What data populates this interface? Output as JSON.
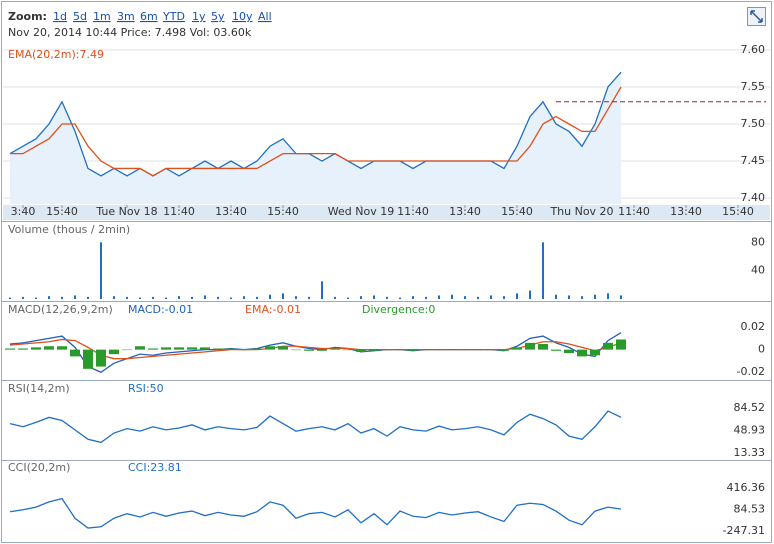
{
  "toolbar": {
    "label": "Zoom:",
    "ranges": [
      "1d",
      "5d",
      "1m",
      "3m",
      "6m",
      "YTD",
      "1y",
      "5y",
      "10y",
      "All"
    ]
  },
  "info": "Nov 20, 2014 10:44 Price: 7.498 Vol: 03.60k",
  "chart_data": [
    {
      "type": "area",
      "grid": true,
      "ylim": [
        7.392,
        7.608
      ],
      "yticks": [
        {
          "value": 7.6,
          "label": "7.60"
        },
        {
          "value": 7.55,
          "label": "7.55"
        },
        {
          "value": 7.5,
          "label": "7.50"
        },
        7.45,
        {
          "value": 7.4,
          "label": "7.40"
        }
      ],
      "categories": [
        null,
        "3:40",
        null,
        null,
        "15:40",
        null,
        null,
        null,
        null,
        "Tue Nov 18",
        null,
        null,
        null,
        "11:40",
        null,
        null,
        null,
        "13:40",
        null,
        null,
        null,
        "15:40",
        null,
        null,
        null,
        null,
        null,
        "Wed Nov 19",
        null,
        null,
        null,
        "11:40",
        null,
        null,
        null,
        "13:40",
        null,
        null,
        null,
        "15:40",
        null,
        null,
        null,
        null,
        "Thu Nov 20",
        null,
        null,
        null,
        "11:40",
        null,
        null,
        null,
        "13:40",
        null,
        null,
        null,
        "15:40",
        null,
        null
      ],
      "reference_line": 7.53,
      "series": [
        {
          "color": "#1f6fc5",
          "values": [
            7.46,
            7.47,
            7.48,
            7.5,
            7.53,
            7.49,
            7.44,
            7.43,
            7.44,
            7.43,
            7.44,
            7.43,
            7.44,
            7.43,
            7.44,
            7.45,
            7.44,
            7.45,
            7.44,
            7.45,
            7.47,
            7.48,
            7.46,
            7.46,
            7.45,
            7.46,
            7.45,
            7.44,
            7.45,
            7.45,
            7.45,
            7.44,
            7.45,
            7.45,
            7.45,
            7.45,
            7.45,
            7.45,
            7.44,
            7.47,
            7.51,
            7.53,
            7.5,
            7.49,
            7.47,
            7.5,
            7.55,
            7.57,
            null,
            null,
            null,
            null,
            null,
            null,
            null,
            null,
            null,
            null,
            null
          ]
        },
        {
          "name": "EMA(20,2m):7.49",
          "color": "#e0501a",
          "type": "line",
          "values": [
            7.46,
            7.46,
            7.47,
            7.48,
            7.5,
            7.5,
            7.47,
            7.45,
            7.44,
            7.44,
            7.44,
            7.43,
            7.44,
            7.44,
            7.44,
            7.44,
            7.44,
            7.44,
            7.44,
            7.44,
            7.45,
            7.46,
            7.46,
            7.46,
            7.46,
            7.46,
            7.45,
            7.45,
            7.45,
            7.45,
            7.45,
            7.45,
            7.45,
            7.45,
            7.45,
            7.45,
            7.45,
            7.45,
            7.45,
            7.45,
            7.47,
            7.5,
            7.51,
            7.5,
            7.49,
            7.49,
            7.52,
            7.55,
            null,
            null,
            null,
            null,
            null,
            null,
            null,
            null,
            null,
            null,
            null
          ]
        }
      ]
    },
    {
      "type": "bar",
      "title": "Volume (thous / 2min)",
      "ylim": [
        0,
        103
      ],
      "yticks": [
        80,
        40
      ],
      "series": [
        {
          "color": "#1f6fc5",
          "values": [
            2,
            3,
            2,
            4,
            3,
            5,
            3,
            80,
            4,
            3,
            2,
            3,
            2,
            4,
            3,
            5,
            3,
            2,
            4,
            3,
            6,
            8,
            4,
            3,
            25,
            3,
            2,
            4,
            5,
            3,
            2,
            4,
            3,
            5,
            6,
            4,
            3,
            5,
            4,
            8,
            12,
            80,
            6,
            5,
            4,
            6,
            8,
            5,
            null,
            null,
            null,
            null,
            null,
            null,
            null,
            null,
            null,
            null,
            null
          ]
        }
      ]
    },
    {
      "type": "line",
      "title": "MACD(12,26,9,2m)",
      "ylim": [
        -0.026,
        0.028
      ],
      "yticks": [
        0.02,
        0,
        -0.02
      ],
      "series": [
        {
          "name": "MACD:-0.01",
          "color": "#2060c0",
          "values": [
            0.005,
            0.006,
            0.008,
            0.01,
            0.012,
            0.002,
            -0.015,
            -0.02,
            -0.012,
            -0.008,
            -0.004,
            -0.005,
            -0.003,
            -0.002,
            -0.001,
            0,
            0,
            0.001,
            0,
            0.001,
            0.004,
            0.006,
            0.003,
            0.001,
            0,
            0.002,
            0.001,
            -0.002,
            -0.001,
            0,
            0,
            -0.001,
            0,
            0,
            0,
            0,
            0,
            0,
            -0.001,
            0.003,
            0.01,
            0.012,
            0.006,
            0.002,
            -0.004,
            -0.006,
            0.008,
            0.015,
            null,
            null,
            null,
            null,
            null,
            null,
            null,
            null,
            null,
            null,
            null
          ]
        },
        {
          "name": "EMA:-0.01",
          "color": "#e0501a",
          "values": [
            0.004,
            0.005,
            0.006,
            0.007,
            0.009,
            0.008,
            0.002,
            -0.005,
            -0.008,
            -0.008,
            -0.007,
            -0.006,
            -0.005,
            -0.004,
            -0.003,
            -0.002,
            -0.001,
            0,
            0,
            0,
            0.001,
            0.003,
            0.003,
            0.002,
            0.001,
            0.001,
            0.001,
            0,
            0,
            0,
            0,
            0,
            0,
            0,
            0,
            0,
            0,
            0,
            0,
            0.001,
            0.004,
            0.007,
            0.007,
            0.005,
            0.002,
            -0.001,
            0.002,
            0.006,
            null,
            null,
            null,
            null,
            null,
            null,
            null,
            null,
            null,
            null,
            null
          ]
        },
        {
          "name": "Divergence:0",
          "color": "#2a9a2a",
          "type": "bar",
          "values": [
            0.001,
            0.001,
            0.002,
            0.003,
            0.003,
            -0.006,
            -0.017,
            -0.015,
            -0.004,
            0,
            0.003,
            0.001,
            0.002,
            0.002,
            0.002,
            0.002,
            0.001,
            0.001,
            0,
            0.001,
            0.003,
            0.003,
            0,
            -0.001,
            -0.001,
            0.001,
            0,
            -0.002,
            -0.001,
            0,
            0,
            -0.001,
            0,
            0,
            0,
            0,
            0,
            0,
            -0.001,
            0.002,
            0.006,
            0.005,
            -0.001,
            -0.003,
            -0.006,
            -0.005,
            0.006,
            0.009,
            null,
            null,
            null,
            null,
            null,
            null,
            null,
            null,
            null,
            null,
            null
          ]
        }
      ]
    },
    {
      "type": "line",
      "title": "RSI(14,2m)",
      "ylim": [
        3.6,
        104
      ],
      "yticks": [
        84.52,
        48.93,
        13.33
      ],
      "series": [
        {
          "name": "RSI:50",
          "color": "#1f6fc5",
          "values": [
            60,
            55,
            62,
            70,
            65,
            50,
            35,
            30,
            45,
            52,
            48,
            55,
            50,
            53,
            58,
            50,
            55,
            52,
            50,
            54,
            72,
            60,
            48,
            52,
            55,
            50,
            60,
            45,
            52,
            40,
            55,
            50,
            48,
            56,
            50,
            52,
            55,
            50,
            42,
            62,
            75,
            68,
            58,
            40,
            35,
            55,
            80,
            70,
            null,
            null,
            null,
            null,
            null,
            null,
            null,
            null,
            null,
            null,
            null
          ]
        }
      ]
    },
    {
      "type": "line",
      "title": "CCI(20,2m)",
      "ylim": [
        -383,
        597
      ],
      "yticks": [
        416.36,
        84.53,
        -247.31
      ],
      "series": [
        {
          "name": "CCI:23.81",
          "color": "#1f6fc5",
          "values": [
            50,
            80,
            120,
            200,
            250,
            -50,
            -200,
            -180,
            -50,
            20,
            -30,
            40,
            -20,
            30,
            60,
            -10,
            40,
            0,
            -20,
            50,
            200,
            150,
            -50,
            20,
            40,
            -30,
            80,
            -120,
            20,
            -150,
            60,
            -20,
            -40,
            40,
            0,
            30,
            50,
            -30,
            -100,
            150,
            180,
            160,
            60,
            -80,
            -150,
            60,
            120,
            90,
            null,
            null,
            null,
            null,
            null,
            null,
            null,
            null,
            null,
            null,
            null
          ]
        }
      ]
    }
  ]
}
